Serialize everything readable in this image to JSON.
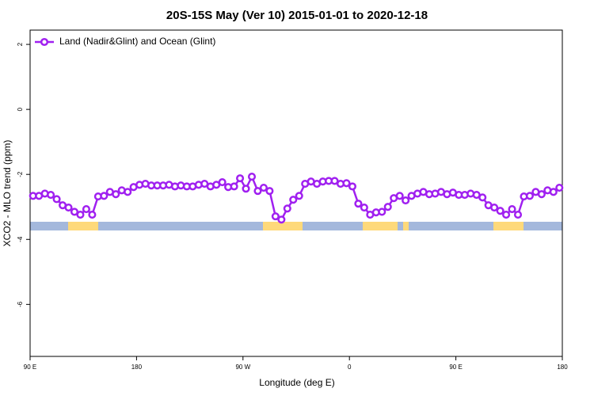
{
  "chart_data": {
    "type": "line",
    "title": "20S-15S May (Ver 10)   2015-01-01 to 2020-12-18",
    "x_label": "Longitude (deg E)",
    "y_label": "XCO2 - MLO trend (ppm)",
    "xlim": [
      90,
      540
    ],
    "ylim": [
      -7.6,
      2.44
    ],
    "xticks": [
      {
        "value": 90,
        "label": "90 E"
      },
      180,
      {
        "value": 270,
        "label": "90 W"
      },
      0,
      {
        "value": 450,
        "label": "90 E"
      },
      {
        "value": 540,
        "label": "180"
      }
    ],
    "yticks": [
      2,
      0,
      -2,
      -4,
      -6
    ],
    "legend": "top-left",
    "series": [
      {
        "name": "Land (Nadir&Glint) and Ocean (Glint)",
        "color": "#a020f0",
        "x": [
          92.5,
          97.5,
          102.5,
          107.5,
          112.5,
          117.5,
          122.5,
          127.5,
          132.5,
          137.5,
          142.5,
          147.5,
          152.5,
          157.5,
          162.5,
          167.5,
          172.5,
          177.5,
          182.5,
          187.5,
          192.5,
          197.5,
          202.5,
          207.5,
          212.5,
          217.5,
          222.5,
          227.5,
          232.5,
          237.5,
          242.5,
          247.5,
          252.5,
          257.5,
          262.5,
          267.5,
          272.5,
          277.5,
          282.5,
          287.5,
          292.5,
          297.5,
          302.5,
          307.5,
          312.5,
          317.5,
          322.5,
          327.5,
          332.5,
          337.5,
          342.5,
          347.5,
          352.5,
          357.5,
          362.5,
          367.5,
          372.5,
          377.5,
          382.5,
          387.5,
          392.5,
          397.5,
          402.5,
          407.5,
          412.5,
          417.5,
          422.5,
          427.5,
          432.5,
          437.5,
          442.5,
          447.5,
          452.5,
          457.5,
          462.5,
          467.5,
          472.5,
          477.5,
          482.5,
          487.5,
          492.5,
          497.5,
          502.5,
          507.5,
          512.5,
          517.5,
          522.5,
          527.5,
          532.5,
          537.5
        ],
        "values": [
          -2.66,
          -2.66,
          -2.59,
          -2.63,
          -2.76,
          -2.95,
          -3.02,
          -3.15,
          -3.24,
          -3.07,
          -3.24,
          -2.68,
          -2.66,
          -2.54,
          -2.61,
          -2.49,
          -2.54,
          -2.39,
          -2.32,
          -2.29,
          -2.34,
          -2.34,
          -2.34,
          -2.32,
          -2.37,
          -2.34,
          -2.37,
          -2.37,
          -2.32,
          -2.29,
          -2.37,
          -2.32,
          -2.24,
          -2.39,
          -2.37,
          -2.12,
          -2.44,
          -2.07,
          -2.51,
          -2.41,
          -2.51,
          -3.29,
          -3.39,
          -3.05,
          -2.78,
          -2.66,
          -2.29,
          -2.22,
          -2.29,
          -2.22,
          -2.2,
          -2.2,
          -2.29,
          -2.27,
          -2.37,
          -2.9,
          -3.02,
          -3.24,
          -3.17,
          -3.15,
          -3.0,
          -2.73,
          -2.66,
          -2.8,
          -2.66,
          -2.59,
          -2.54,
          -2.61,
          -2.59,
          -2.54,
          -2.61,
          -2.56,
          -2.63,
          -2.63,
          -2.59,
          -2.63,
          -2.71,
          -2.95,
          -3.02,
          -3.12,
          -3.24,
          -3.07,
          -3.24,
          -2.68,
          -2.66,
          -2.54,
          -2.61,
          -2.49,
          -2.54,
          -2.41
        ]
      }
    ]
  }
}
